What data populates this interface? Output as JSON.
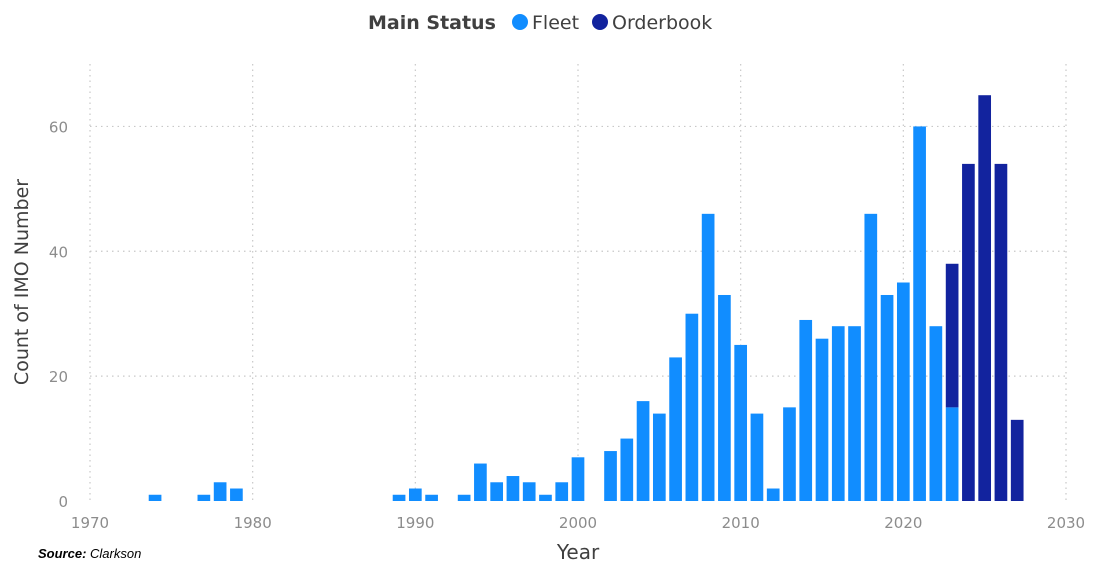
{
  "legend": {
    "title": "Main Status",
    "items": [
      {
        "label": "Fleet",
        "color": "#118DFF"
      },
      {
        "label": "Orderbook",
        "color": "#12239E"
      }
    ]
  },
  "source": {
    "label": "Source:",
    "value": "Clarkson"
  },
  "chart_data": {
    "type": "bar",
    "stacked": true,
    "xlabel": "Year",
    "ylabel": "Count of IMO Number",
    "xlim": [
      1970,
      2030
    ],
    "ylim": [
      0,
      70
    ],
    "x_ticks": [
      1970,
      1980,
      1990,
      2000,
      2010,
      2020,
      2030
    ],
    "y_ticks": [
      0,
      20,
      40,
      60
    ],
    "grid": true,
    "legend_position": "top-center",
    "x": [
      1974,
      1977,
      1978,
      1979,
      1989,
      1990,
      1991,
      1993,
      1994,
      1995,
      1996,
      1997,
      1998,
      1999,
      2000,
      2002,
      2003,
      2004,
      2005,
      2006,
      2007,
      2008,
      2009,
      2010,
      2011,
      2012,
      2013,
      2014,
      2015,
      2016,
      2017,
      2018,
      2019,
      2020,
      2021,
      2022,
      2023,
      2024,
      2025,
      2026,
      2027
    ],
    "series": [
      {
        "name": "Fleet",
        "color": "#118DFF",
        "values": [
          1,
          1,
          3,
          2,
          1,
          2,
          1,
          1,
          6,
          3,
          4,
          3,
          1,
          3,
          7,
          8,
          10,
          16,
          14,
          23,
          30,
          46,
          33,
          25,
          14,
          2,
          15,
          29,
          26,
          28,
          28,
          46,
          33,
          35,
          60,
          28,
          15,
          0,
          0,
          0,
          0
        ]
      },
      {
        "name": "Orderbook",
        "color": "#12239E",
        "values": [
          0,
          0,
          0,
          0,
          0,
          0,
          0,
          0,
          0,
          0,
          0,
          0,
          0,
          0,
          0,
          0,
          0,
          0,
          0,
          0,
          0,
          0,
          0,
          0,
          0,
          0,
          0,
          0,
          0,
          0,
          0,
          0,
          0,
          0,
          0,
          0,
          23,
          54,
          65,
          54,
          13
        ]
      }
    ]
  }
}
